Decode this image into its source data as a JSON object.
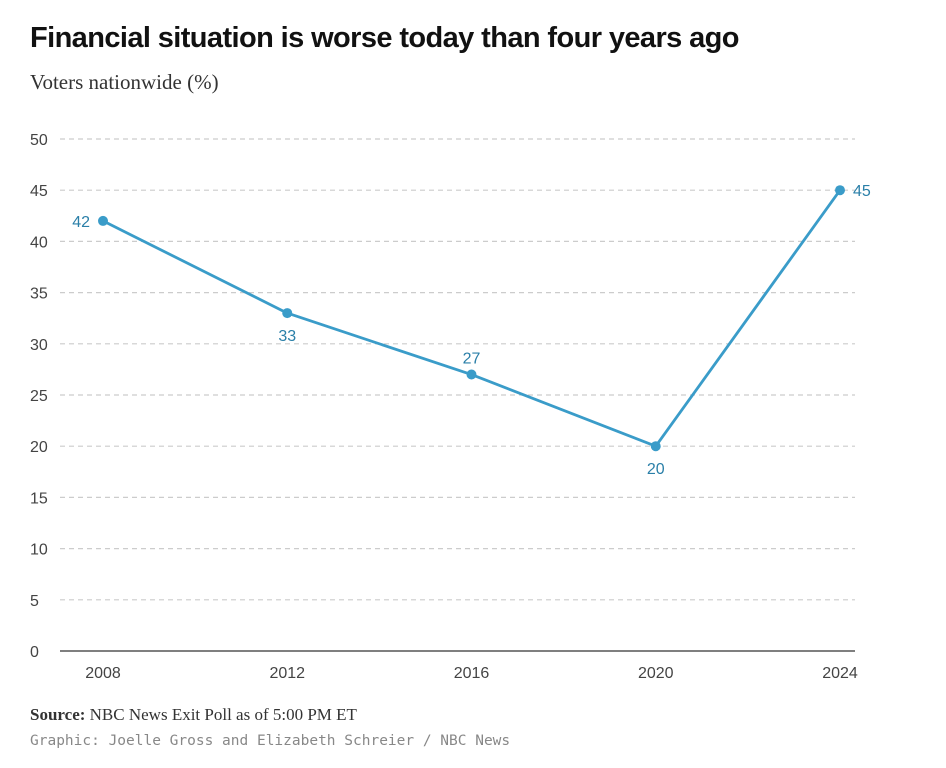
{
  "header": {
    "title": "Financial situation is worse today than four years ago",
    "subtitle": "Voters nationwide (%)"
  },
  "footer": {
    "source_label": "Source:",
    "source_text": "NBC News Exit Poll as of 5:00 PM ET",
    "credit": "Graphic: Joelle Gross and Elizabeth Schreier / NBC News"
  },
  "colors": {
    "line": "#3a9cc9",
    "label": "#2a7fa8",
    "grid": "#cccccc",
    "axis": "#555555"
  },
  "chart_data": {
    "type": "line",
    "title": "Financial situation is worse today than four years ago",
    "subtitle": "Voters nationwide (%)",
    "x": [
      "2008",
      "2012",
      "2016",
      "2020",
      "2024"
    ],
    "values": [
      42,
      33,
      27,
      20,
      45
    ],
    "data_labels": [
      "42",
      "33",
      "27",
      "20",
      "45"
    ],
    "label_positions": [
      "left",
      "below",
      "above",
      "below",
      "right"
    ],
    "ylim": [
      0,
      50
    ],
    "yticks": [
      "0",
      "5",
      "10",
      "15",
      "20",
      "25",
      "30",
      "35",
      "40",
      "45",
      "50"
    ],
    "grid": true,
    "legend": false
  }
}
